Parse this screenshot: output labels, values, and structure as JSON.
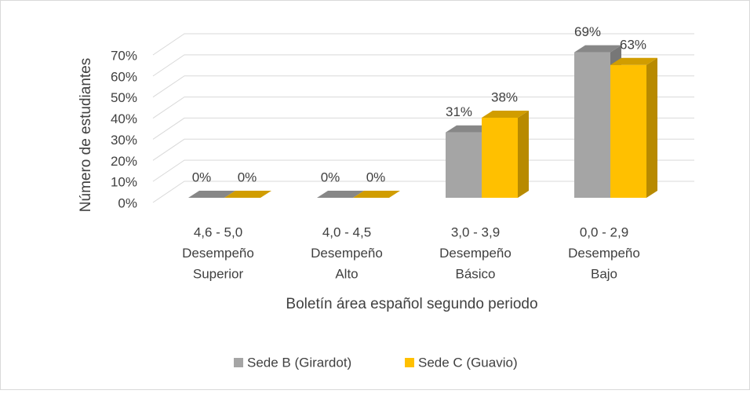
{
  "chart_data": {
    "type": "bar3d",
    "x_label": "Boletín área español segundo periodo",
    "y_label": "Número de estudiantes",
    "categories": [
      [
        "4,6 - 5,0",
        "Desempeño",
        "Superior"
      ],
      [
        "4,0 - 4,5",
        "Desempeño",
        "Alto"
      ],
      [
        "3,0 - 3,9",
        "Desempeño",
        "Básico"
      ],
      [
        "0,0 - 2,9",
        "Desempeño",
        "Bajo"
      ]
    ],
    "series": [
      {
        "name": "Sede B (Girardot)",
        "color": "#a5a5a5",
        "values": [
          0,
          0,
          31,
          69
        ],
        "value_labels": [
          "0%",
          "0%",
          "31%",
          "69%"
        ]
      },
      {
        "name": "Sede C (Guavio)",
        "color": "#ffc000",
        "values": [
          0,
          0,
          38,
          63
        ],
        "value_labels": [
          "0%",
          "0%",
          "38%",
          "63%"
        ]
      }
    ],
    "ylim": [
      0,
      70
    ],
    "yticks": [
      {
        "value": 0,
        "label": "0%"
      },
      {
        "value": 10,
        "label": "10%"
      },
      {
        "value": 20,
        "label": "20%"
      },
      {
        "value": 30,
        "label": "30%"
      },
      {
        "value": 40,
        "label": "40%"
      },
      {
        "value": 50,
        "label": "50%"
      },
      {
        "value": 60,
        "label": "60%"
      },
      {
        "value": 70,
        "label": "70%"
      }
    ],
    "grid": true,
    "legend": "bottom"
  }
}
